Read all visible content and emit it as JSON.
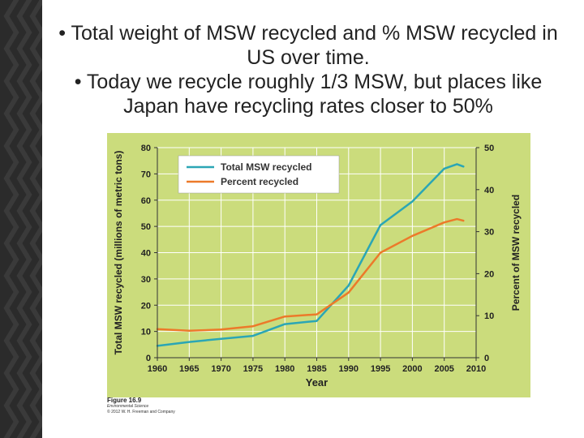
{
  "slide": {
    "bullet1": "•   Total weight of MSW recycled and % MSW recycled in US over time.",
    "bullet2": "•   Today we recycle roughly 1/3 MSW, but places like Japan have recycling rates closer to 50%"
  },
  "figure": {
    "label": "Figure 16.9",
    "source": "Environmental Science",
    "copyright": "© 2012 W. H. Freeman and Company"
  },
  "colors": {
    "plot_bg": "#cbdc7c",
    "grid": "#ffffff",
    "total_line": "#2ba6b5",
    "percent_line": "#ec7a2a"
  },
  "chart_data": {
    "type": "line",
    "xlabel": "Year",
    "ylabel": "Total MSW recycled (millions of metric tons)",
    "y2label": "Percent of MSW recycled",
    "xlim": [
      1960,
      2010
    ],
    "ylim": [
      0,
      80
    ],
    "y2lim": [
      0,
      50
    ],
    "xticks": [
      1960,
      1965,
      1970,
      1975,
      1980,
      1985,
      1990,
      1995,
      2000,
      2005,
      2010
    ],
    "yticks": [
      0,
      10,
      20,
      30,
      40,
      50,
      60,
      70,
      80
    ],
    "y2ticks": [
      0,
      10,
      20,
      30,
      40,
      50
    ],
    "grid": true,
    "legend": "top-left",
    "series": [
      {
        "name": "Total MSW recycled",
        "axis": "left",
        "x": [
          1960,
          1965,
          1970,
          1975,
          1980,
          1985,
          1990,
          1995,
          2000,
          2005,
          2007,
          2008
        ],
        "values": [
          4.5,
          6.0,
          7.2,
          8.3,
          12.8,
          14.0,
          27.5,
          50.5,
          59.5,
          72.0,
          73.7,
          72.8
        ]
      },
      {
        "name": "Percent recycled",
        "axis": "right",
        "x": [
          1960,
          1965,
          1970,
          1975,
          1980,
          1985,
          1990,
          1995,
          2000,
          2005,
          2007,
          2008
        ],
        "values": [
          6.8,
          6.4,
          6.7,
          7.5,
          9.8,
          10.3,
          15.5,
          25.0,
          29.0,
          32.2,
          33.0,
          32.6
        ]
      }
    ]
  }
}
